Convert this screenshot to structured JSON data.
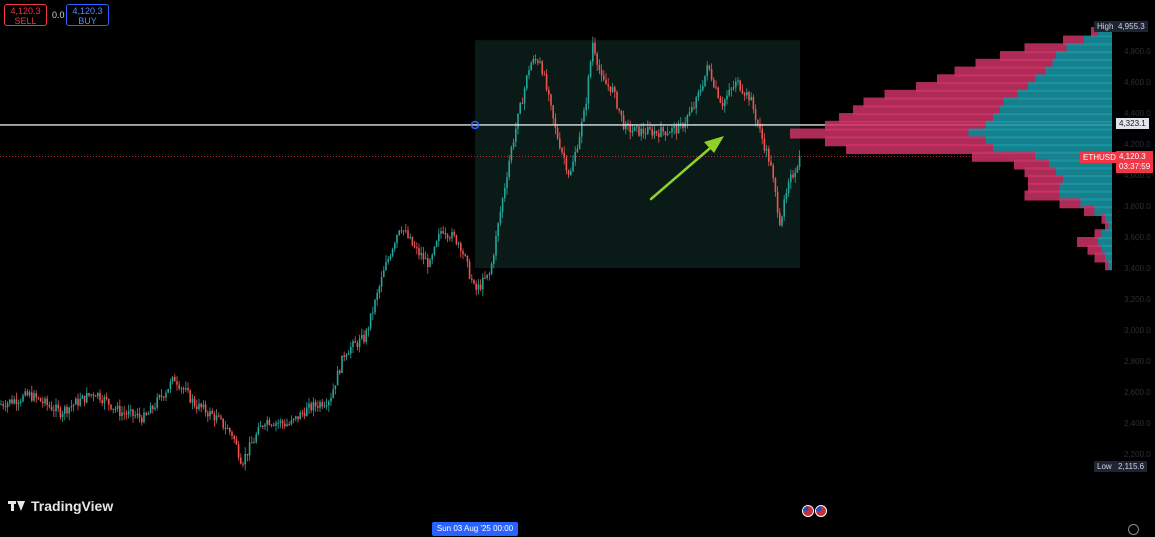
{
  "header": {
    "sell_price": "4,120.3",
    "sell_label": "SELL",
    "spread": "0.0",
    "buy_price": "4,120.3",
    "buy_label": "BUY"
  },
  "brand": "TradingView",
  "crosshair_date": "Sun 03 Aug '25   00:00",
  "price_labels": {
    "high_label": "High",
    "high_value": "4,955.3",
    "cursor_value": "4,323.1",
    "symbol": "ETHUSD",
    "last_value": "4,120.3",
    "countdown": "03:37:59",
    "low_label": "Low",
    "low_value": "2,115.6"
  },
  "colors": {
    "up": "#26a69a",
    "down": "#ef5350",
    "accent": "#2962ff",
    "profile_up": "#1a97a6",
    "profile_down": "#cd3266",
    "arrow": "#8fd12a",
    "box": "#0a1a17"
  },
  "chart_data": {
    "type": "candlestick",
    "instrument": "ETHUSD",
    "ylim": [
      2115.6,
      4955.3
    ],
    "points": [
      [
        0,
        2520
      ],
      [
        30,
        2580
      ],
      [
        60,
        2470
      ],
      [
        95,
        2600
      ],
      [
        120,
        2470
      ],
      [
        145,
        2430
      ],
      [
        175,
        2690
      ],
      [
        195,
        2520
      ],
      [
        215,
        2440
      ],
      [
        232,
        2330
      ],
      [
        242,
        2150
      ],
      [
        265,
        2420
      ],
      [
        290,
        2390
      ],
      [
        305,
        2480
      ],
      [
        330,
        2560
      ],
      [
        345,
        2860
      ],
      [
        365,
        2950
      ],
      [
        385,
        3400
      ],
      [
        400,
        3680
      ],
      [
        415,
        3520
      ],
      [
        430,
        3420
      ],
      [
        442,
        3660
      ],
      [
        460,
        3560
      ],
      [
        475,
        3250
      ],
      [
        490,
        3360
      ],
      [
        510,
        4130
      ],
      [
        530,
        4720
      ],
      [
        540,
        4750
      ],
      [
        555,
        4300
      ],
      [
        570,
        3990
      ],
      [
        585,
        4420
      ],
      [
        593,
        4870
      ],
      [
        602,
        4600
      ],
      [
        612,
        4560
      ],
      [
        625,
        4300
      ],
      [
        640,
        4280
      ],
      [
        660,
        4280
      ],
      [
        680,
        4300
      ],
      [
        695,
        4450
      ],
      [
        708,
        4700
      ],
      [
        722,
        4460
      ],
      [
        737,
        4600
      ],
      [
        750,
        4500
      ],
      [
        760,
        4280
      ],
      [
        770,
        4080
      ],
      [
        780,
        3700
      ],
      [
        790,
        3960
      ],
      [
        800,
        4120
      ]
    ],
    "volume_profile": [
      [
        4955.3,
        4,
        2
      ],
      [
        4900,
        8,
        6
      ],
      [
        4850,
        13,
        12
      ],
      [
        4800,
        16,
        16
      ],
      [
        4750,
        17,
        22
      ],
      [
        4700,
        19,
        26
      ],
      [
        4650,
        22,
        28
      ],
      [
        4600,
        24,
        32
      ],
      [
        4550,
        27,
        38
      ],
      [
        4500,
        31,
        40
      ],
      [
        4450,
        32,
        42
      ],
      [
        4400,
        34,
        44
      ],
      [
        4350,
        36,
        46
      ],
      [
        4300,
        41,
        51
      ],
      [
        4250,
        36,
        46
      ],
      [
        4200,
        34,
        42
      ],
      [
        4150,
        22,
        18
      ],
      [
        4100,
        18,
        10
      ],
      [
        4050,
        16,
        9
      ],
      [
        4000,
        14,
        10
      ],
      [
        3950,
        15,
        9
      ],
      [
        3900,
        15,
        10
      ],
      [
        3850,
        9,
        6
      ],
      [
        3800,
        5,
        3
      ],
      [
        3750,
        2,
        1
      ],
      [
        3700,
        1,
        1
      ],
      [
        3650,
        3,
        2
      ],
      [
        3600,
        4,
        6
      ],
      [
        3550,
        3,
        4
      ],
      [
        3500,
        2,
        3
      ],
      [
        3450,
        1,
        1
      ]
    ],
    "rectangle": {
      "x_start": 475,
      "x_end": 800,
      "y_low": 3400,
      "y_high": 4870
    },
    "horizontal_line": 4323.1,
    "last_price_line": 4120.3,
    "grid": false
  }
}
